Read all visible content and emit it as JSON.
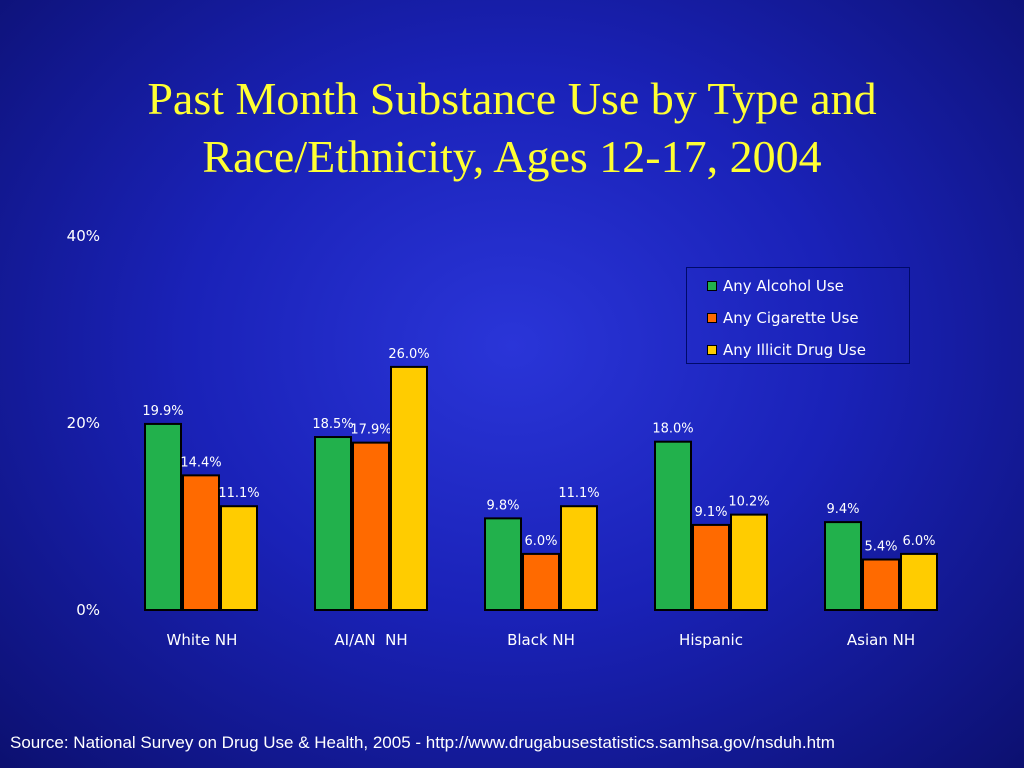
{
  "title": {
    "line1": "Past Month Substance Use by Type and",
    "line2": "Race/Ethnicity, Ages 12-17, 2004"
  },
  "source": "Source: National Survey on Drug Use & Health, 2005 - http://www.drugabusestatistics.samhsa.gov/nsduh.htm",
  "colors": {
    "alcohol": "#22b14c",
    "cigarette": "#ff6a00",
    "illicit": "#ffcc00"
  },
  "chart_data": {
    "type": "bar",
    "categories": [
      "White NH",
      "AI/AN  NH",
      "Black NH",
      "Hispanic",
      "Asian NH"
    ],
    "series": [
      {
        "name": "Any Alcohol Use",
        "values": [
          19.9,
          18.5,
          9.8,
          18.0,
          9.4
        ],
        "labels": [
          "19.9%",
          "18.5%",
          "9.8%",
          "18.0%",
          "9.4%"
        ]
      },
      {
        "name": "Any Cigarette Use",
        "values": [
          14.4,
          17.9,
          6.0,
          9.1,
          5.4
        ],
        "labels": [
          "14.4%",
          "17.9%",
          "6.0%",
          "9.1%",
          "5.4%"
        ]
      },
      {
        "name": "Any Illicit Drug Use",
        "values": [
          11.1,
          26.0,
          11.1,
          10.2,
          6.0
        ],
        "labels": [
          "11.1%",
          "26.0%",
          "11.1%",
          "10.2%",
          "6.0%"
        ]
      }
    ],
    "y_ticks": [
      "0%",
      "20%",
      "40%"
    ],
    "ylim": [
      0,
      40
    ],
    "legend": "top-right",
    "grid": false
  }
}
